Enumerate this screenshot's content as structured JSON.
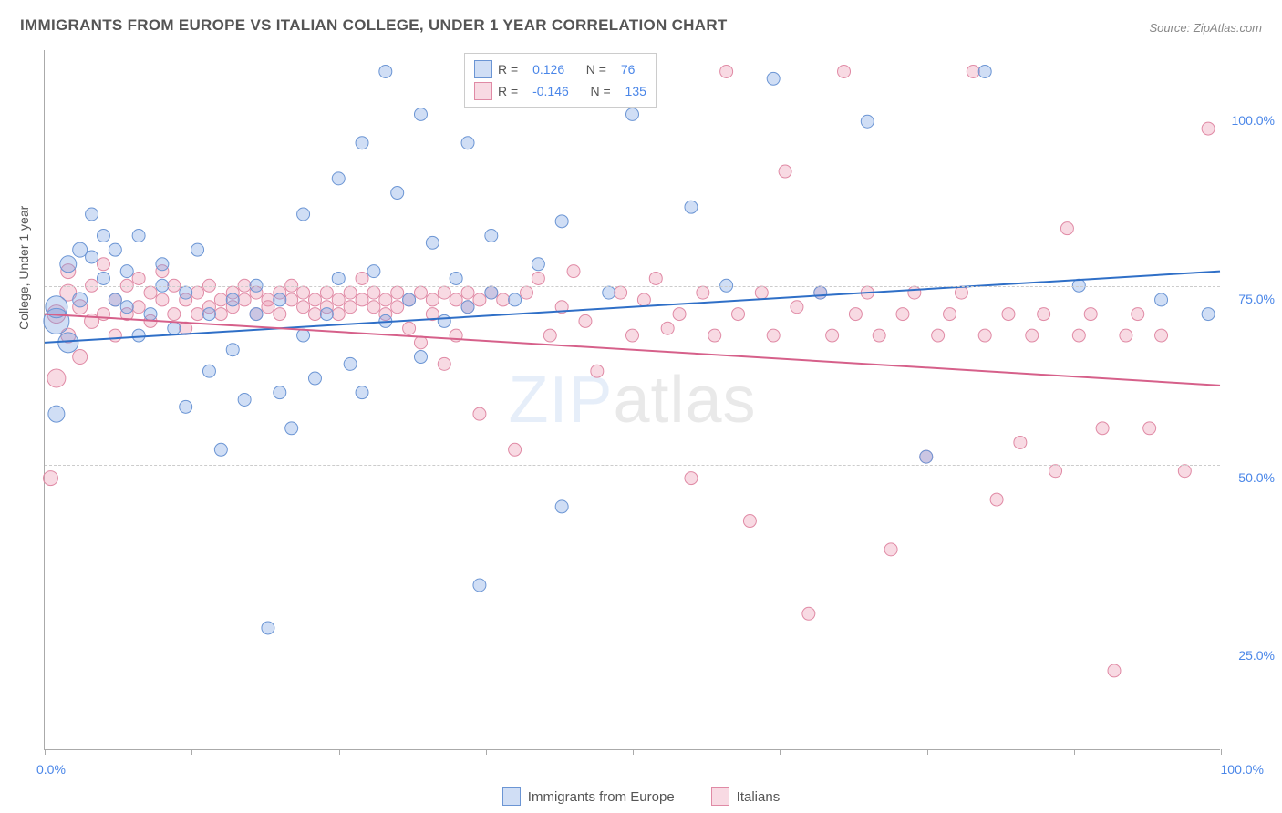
{
  "title": "IMMIGRANTS FROM EUROPE VS ITALIAN COLLEGE, UNDER 1 YEAR CORRELATION CHART",
  "source": "Source: ZipAtlas.com",
  "y_axis_label": "College, Under 1 year",
  "watermark_a": "ZIP",
  "watermark_b": "atlas",
  "chart": {
    "type": "scatter",
    "background_color": "#ffffff",
    "grid_color": "#cccccc",
    "axis_color": "#aaaaaa",
    "xlim": [
      0,
      100
    ],
    "ylim": [
      10,
      108
    ],
    "x_ticks": [
      0,
      12.5,
      25,
      37.5,
      50,
      62.5,
      75,
      87.5,
      100
    ],
    "x_tick_labels": {
      "0": "0.0%",
      "100": "100.0%"
    },
    "y_gridlines": [
      25,
      50,
      75,
      100
    ],
    "y_tick_labels": {
      "25": "25.0%",
      "50": "50.0%",
      "75": "75.0%",
      "100": "100.0%"
    },
    "tick_label_color": "#4a86e8",
    "tick_label_fontsize": 14
  },
  "series": [
    {
      "name": "Immigrants from Europe",
      "fill": "rgba(120,160,225,0.35)",
      "stroke": "#6b95d4",
      "line_color": "#2f6fc7",
      "line_width": 2,
      "R": "0.126",
      "N": "76",
      "trend": {
        "x1": 0,
        "y1": 67,
        "x2": 100,
        "y2": 77
      },
      "points": [
        {
          "x": 1,
          "y": 70,
          "r": 14
        },
        {
          "x": 1,
          "y": 72,
          "r": 12
        },
        {
          "x": 1,
          "y": 57,
          "r": 9
        },
        {
          "x": 2,
          "y": 67,
          "r": 11
        },
        {
          "x": 2,
          "y": 78,
          "r": 9
        },
        {
          "x": 3,
          "y": 80,
          "r": 8
        },
        {
          "x": 3,
          "y": 73,
          "r": 8
        },
        {
          "x": 4,
          "y": 79,
          "r": 7
        },
        {
          "x": 4,
          "y": 85,
          "r": 7
        },
        {
          "x": 5,
          "y": 82,
          "r": 7
        },
        {
          "x": 5,
          "y": 76,
          "r": 7
        },
        {
          "x": 6,
          "y": 80,
          "r": 7
        },
        {
          "x": 6,
          "y": 73,
          "r": 7
        },
        {
          "x": 7,
          "y": 72,
          "r": 7
        },
        {
          "x": 7,
          "y": 77,
          "r": 7
        },
        {
          "x": 8,
          "y": 82,
          "r": 7
        },
        {
          "x": 8,
          "y": 68,
          "r": 7
        },
        {
          "x": 9,
          "y": 71,
          "r": 7
        },
        {
          "x": 10,
          "y": 75,
          "r": 7
        },
        {
          "x": 10,
          "y": 78,
          "r": 7
        },
        {
          "x": 11,
          "y": 69,
          "r": 7
        },
        {
          "x": 12,
          "y": 58,
          "r": 7
        },
        {
          "x": 12,
          "y": 74,
          "r": 7
        },
        {
          "x": 13,
          "y": 80,
          "r": 7
        },
        {
          "x": 14,
          "y": 63,
          "r": 7
        },
        {
          "x": 14,
          "y": 71,
          "r": 7
        },
        {
          "x": 15,
          "y": 52,
          "r": 7
        },
        {
          "x": 16,
          "y": 73,
          "r": 7
        },
        {
          "x": 16,
          "y": 66,
          "r": 7
        },
        {
          "x": 17,
          "y": 59,
          "r": 7
        },
        {
          "x": 18,
          "y": 71,
          "r": 7
        },
        {
          "x": 18,
          "y": 75,
          "r": 7
        },
        {
          "x": 19,
          "y": 27,
          "r": 7
        },
        {
          "x": 20,
          "y": 60,
          "r": 7
        },
        {
          "x": 20,
          "y": 73,
          "r": 7
        },
        {
          "x": 21,
          "y": 55,
          "r": 7
        },
        {
          "x": 22,
          "y": 68,
          "r": 7
        },
        {
          "x": 22,
          "y": 85,
          "r": 7
        },
        {
          "x": 23,
          "y": 62,
          "r": 7
        },
        {
          "x": 24,
          "y": 71,
          "r": 7
        },
        {
          "x": 25,
          "y": 76,
          "r": 7
        },
        {
          "x": 25,
          "y": 90,
          "r": 7
        },
        {
          "x": 26,
          "y": 64,
          "r": 7
        },
        {
          "x": 27,
          "y": 60,
          "r": 7
        },
        {
          "x": 27,
          "y": 95,
          "r": 7
        },
        {
          "x": 28,
          "y": 77,
          "r": 7
        },
        {
          "x": 29,
          "y": 105,
          "r": 7
        },
        {
          "x": 29,
          "y": 70,
          "r": 7
        },
        {
          "x": 30,
          "y": 88,
          "r": 7
        },
        {
          "x": 31,
          "y": 73,
          "r": 7
        },
        {
          "x": 32,
          "y": 99,
          "r": 7
        },
        {
          "x": 32,
          "y": 65,
          "r": 7
        },
        {
          "x": 33,
          "y": 81,
          "r": 7
        },
        {
          "x": 34,
          "y": 70,
          "r": 7
        },
        {
          "x": 35,
          "y": 76,
          "r": 7
        },
        {
          "x": 36,
          "y": 95,
          "r": 7
        },
        {
          "x": 36,
          "y": 72,
          "r": 7
        },
        {
          "x": 37,
          "y": 33,
          "r": 7
        },
        {
          "x": 38,
          "y": 82,
          "r": 7
        },
        {
          "x": 38,
          "y": 74,
          "r": 7
        },
        {
          "x": 40,
          "y": 73,
          "r": 7
        },
        {
          "x": 42,
          "y": 78,
          "r": 7
        },
        {
          "x": 44,
          "y": 84,
          "r": 7
        },
        {
          "x": 44,
          "y": 44,
          "r": 7
        },
        {
          "x": 48,
          "y": 74,
          "r": 7
        },
        {
          "x": 50,
          "y": 99,
          "r": 7
        },
        {
          "x": 55,
          "y": 86,
          "r": 7
        },
        {
          "x": 58,
          "y": 75,
          "r": 7
        },
        {
          "x": 62,
          "y": 104,
          "r": 7
        },
        {
          "x": 66,
          "y": 74,
          "r": 7
        },
        {
          "x": 70,
          "y": 98,
          "r": 7
        },
        {
          "x": 75,
          "y": 51,
          "r": 7
        },
        {
          "x": 80,
          "y": 105,
          "r": 7
        },
        {
          "x": 88,
          "y": 75,
          "r": 7
        },
        {
          "x": 95,
          "y": 73,
          "r": 7
        },
        {
          "x": 99,
          "y": 71,
          "r": 7
        }
      ]
    },
    {
      "name": "Italians",
      "fill": "rgba(235,150,175,0.35)",
      "stroke": "#e08aa5",
      "line_color": "#d6608a",
      "line_width": 2,
      "R": "-0.146",
      "N": "135",
      "trend": {
        "x1": 0,
        "y1": 71,
        "x2": 100,
        "y2": 61
      },
      "points": [
        {
          "x": 0.5,
          "y": 48,
          "r": 8
        },
        {
          "x": 1,
          "y": 62,
          "r": 10
        },
        {
          "x": 1,
          "y": 71,
          "r": 10
        },
        {
          "x": 2,
          "y": 74,
          "r": 9
        },
        {
          "x": 2,
          "y": 68,
          "r": 8
        },
        {
          "x": 2,
          "y": 77,
          "r": 8
        },
        {
          "x": 3,
          "y": 72,
          "r": 8
        },
        {
          "x": 3,
          "y": 65,
          "r": 8
        },
        {
          "x": 4,
          "y": 70,
          "r": 8
        },
        {
          "x": 4,
          "y": 75,
          "r": 7
        },
        {
          "x": 5,
          "y": 78,
          "r": 7
        },
        {
          "x": 5,
          "y": 71,
          "r": 7
        },
        {
          "x": 6,
          "y": 73,
          "r": 7
        },
        {
          "x": 6,
          "y": 68,
          "r": 7
        },
        {
          "x": 7,
          "y": 75,
          "r": 7
        },
        {
          "x": 7,
          "y": 71,
          "r": 7
        },
        {
          "x": 8,
          "y": 72,
          "r": 7
        },
        {
          "x": 8,
          "y": 76,
          "r": 7
        },
        {
          "x": 9,
          "y": 70,
          "r": 7
        },
        {
          "x": 9,
          "y": 74,
          "r": 7
        },
        {
          "x": 10,
          "y": 73,
          "r": 7
        },
        {
          "x": 10,
          "y": 77,
          "r": 7
        },
        {
          "x": 11,
          "y": 71,
          "r": 7
        },
        {
          "x": 11,
          "y": 75,
          "r": 7
        },
        {
          "x": 12,
          "y": 73,
          "r": 7
        },
        {
          "x": 12,
          "y": 69,
          "r": 7
        },
        {
          "x": 13,
          "y": 74,
          "r": 7
        },
        {
          "x": 13,
          "y": 71,
          "r": 7
        },
        {
          "x": 14,
          "y": 75,
          "r": 7
        },
        {
          "x": 14,
          "y": 72,
          "r": 7
        },
        {
          "x": 15,
          "y": 73,
          "r": 7
        },
        {
          "x": 15,
          "y": 71,
          "r": 7
        },
        {
          "x": 16,
          "y": 74,
          "r": 7
        },
        {
          "x": 16,
          "y": 72,
          "r": 7
        },
        {
          "x": 17,
          "y": 73,
          "r": 7
        },
        {
          "x": 17,
          "y": 75,
          "r": 7
        },
        {
          "x": 18,
          "y": 71,
          "r": 7
        },
        {
          "x": 18,
          "y": 74,
          "r": 7
        },
        {
          "x": 19,
          "y": 73,
          "r": 7
        },
        {
          "x": 19,
          "y": 72,
          "r": 7
        },
        {
          "x": 20,
          "y": 74,
          "r": 7
        },
        {
          "x": 20,
          "y": 71,
          "r": 7
        },
        {
          "x": 21,
          "y": 73,
          "r": 7
        },
        {
          "x": 21,
          "y": 75,
          "r": 7
        },
        {
          "x": 22,
          "y": 72,
          "r": 7
        },
        {
          "x": 22,
          "y": 74,
          "r": 7
        },
        {
          "x": 23,
          "y": 73,
          "r": 7
        },
        {
          "x": 23,
          "y": 71,
          "r": 7
        },
        {
          "x": 24,
          "y": 74,
          "r": 7
        },
        {
          "x": 24,
          "y": 72,
          "r": 7
        },
        {
          "x": 25,
          "y": 73,
          "r": 7
        },
        {
          "x": 25,
          "y": 71,
          "r": 7
        },
        {
          "x": 26,
          "y": 74,
          "r": 7
        },
        {
          "x": 26,
          "y": 72,
          "r": 7
        },
        {
          "x": 27,
          "y": 73,
          "r": 7
        },
        {
          "x": 27,
          "y": 76,
          "r": 7
        },
        {
          "x": 28,
          "y": 72,
          "r": 7
        },
        {
          "x": 28,
          "y": 74,
          "r": 7
        },
        {
          "x": 29,
          "y": 73,
          "r": 7
        },
        {
          "x": 29,
          "y": 71,
          "r": 7
        },
        {
          "x": 30,
          "y": 74,
          "r": 7
        },
        {
          "x": 30,
          "y": 72,
          "r": 7
        },
        {
          "x": 31,
          "y": 73,
          "r": 7
        },
        {
          "x": 31,
          "y": 69,
          "r": 7
        },
        {
          "x": 32,
          "y": 74,
          "r": 7
        },
        {
          "x": 32,
          "y": 67,
          "r": 7
        },
        {
          "x": 33,
          "y": 73,
          "r": 7
        },
        {
          "x": 33,
          "y": 71,
          "r": 7
        },
        {
          "x": 34,
          "y": 74,
          "r": 7
        },
        {
          "x": 34,
          "y": 64,
          "r": 7
        },
        {
          "x": 35,
          "y": 73,
          "r": 7
        },
        {
          "x": 35,
          "y": 68,
          "r": 7
        },
        {
          "x": 36,
          "y": 74,
          "r": 7
        },
        {
          "x": 36,
          "y": 72,
          "r": 7
        },
        {
          "x": 37,
          "y": 73,
          "r": 7
        },
        {
          "x": 37,
          "y": 57,
          "r": 7
        },
        {
          "x": 38,
          "y": 74,
          "r": 7
        },
        {
          "x": 39,
          "y": 73,
          "r": 7
        },
        {
          "x": 40,
          "y": 52,
          "r": 7
        },
        {
          "x": 41,
          "y": 74,
          "r": 7
        },
        {
          "x": 42,
          "y": 76,
          "r": 7
        },
        {
          "x": 43,
          "y": 68,
          "r": 7
        },
        {
          "x": 44,
          "y": 72,
          "r": 7
        },
        {
          "x": 45,
          "y": 77,
          "r": 7
        },
        {
          "x": 46,
          "y": 70,
          "r": 7
        },
        {
          "x": 47,
          "y": 63,
          "r": 7
        },
        {
          "x": 48,
          "y": 102,
          "r": 7
        },
        {
          "x": 49,
          "y": 74,
          "r": 7
        },
        {
          "x": 50,
          "y": 68,
          "r": 7
        },
        {
          "x": 51,
          "y": 73,
          "r": 7
        },
        {
          "x": 52,
          "y": 76,
          "r": 7
        },
        {
          "x": 53,
          "y": 69,
          "r": 7
        },
        {
          "x": 54,
          "y": 71,
          "r": 7
        },
        {
          "x": 55,
          "y": 48,
          "r": 7
        },
        {
          "x": 56,
          "y": 74,
          "r": 7
        },
        {
          "x": 57,
          "y": 68,
          "r": 7
        },
        {
          "x": 58,
          "y": 105,
          "r": 7
        },
        {
          "x": 59,
          "y": 71,
          "r": 7
        },
        {
          "x": 60,
          "y": 42,
          "r": 7
        },
        {
          "x": 61,
          "y": 74,
          "r": 7
        },
        {
          "x": 62,
          "y": 68,
          "r": 7
        },
        {
          "x": 63,
          "y": 91,
          "r": 7
        },
        {
          "x": 64,
          "y": 72,
          "r": 7
        },
        {
          "x": 65,
          "y": 29,
          "r": 7
        },
        {
          "x": 66,
          "y": 74,
          "r": 7
        },
        {
          "x": 67,
          "y": 68,
          "r": 7
        },
        {
          "x": 68,
          "y": 105,
          "r": 7
        },
        {
          "x": 69,
          "y": 71,
          "r": 7
        },
        {
          "x": 70,
          "y": 74,
          "r": 7
        },
        {
          "x": 71,
          "y": 68,
          "r": 7
        },
        {
          "x": 72,
          "y": 38,
          "r": 7
        },
        {
          "x": 73,
          "y": 71,
          "r": 7
        },
        {
          "x": 74,
          "y": 74,
          "r": 7
        },
        {
          "x": 75,
          "y": 51,
          "r": 7
        },
        {
          "x": 76,
          "y": 68,
          "r": 7
        },
        {
          "x": 77,
          "y": 71,
          "r": 7
        },
        {
          "x": 78,
          "y": 74,
          "r": 7
        },
        {
          "x": 79,
          "y": 105,
          "r": 7
        },
        {
          "x": 80,
          "y": 68,
          "r": 7
        },
        {
          "x": 81,
          "y": 45,
          "r": 7
        },
        {
          "x": 82,
          "y": 71,
          "r": 7
        },
        {
          "x": 83,
          "y": 53,
          "r": 7
        },
        {
          "x": 84,
          "y": 68,
          "r": 7
        },
        {
          "x": 85,
          "y": 71,
          "r": 7
        },
        {
          "x": 86,
          "y": 49,
          "r": 7
        },
        {
          "x": 87,
          "y": 83,
          "r": 7
        },
        {
          "x": 88,
          "y": 68,
          "r": 7
        },
        {
          "x": 89,
          "y": 71,
          "r": 7
        },
        {
          "x": 90,
          "y": 55,
          "r": 7
        },
        {
          "x": 91,
          "y": 21,
          "r": 7
        },
        {
          "x": 92,
          "y": 68,
          "r": 7
        },
        {
          "x": 93,
          "y": 71,
          "r": 7
        },
        {
          "x": 94,
          "y": 55,
          "r": 7
        },
        {
          "x": 95,
          "y": 68,
          "r": 7
        },
        {
          "x": 97,
          "y": 49,
          "r": 7
        },
        {
          "x": 99,
          "y": 97,
          "r": 7
        }
      ]
    }
  ],
  "legend": {
    "R_label": "R =",
    "N_label": "N ="
  },
  "bottom_legend": {
    "series1_label": "Immigrants from Europe",
    "series2_label": "Italians"
  }
}
